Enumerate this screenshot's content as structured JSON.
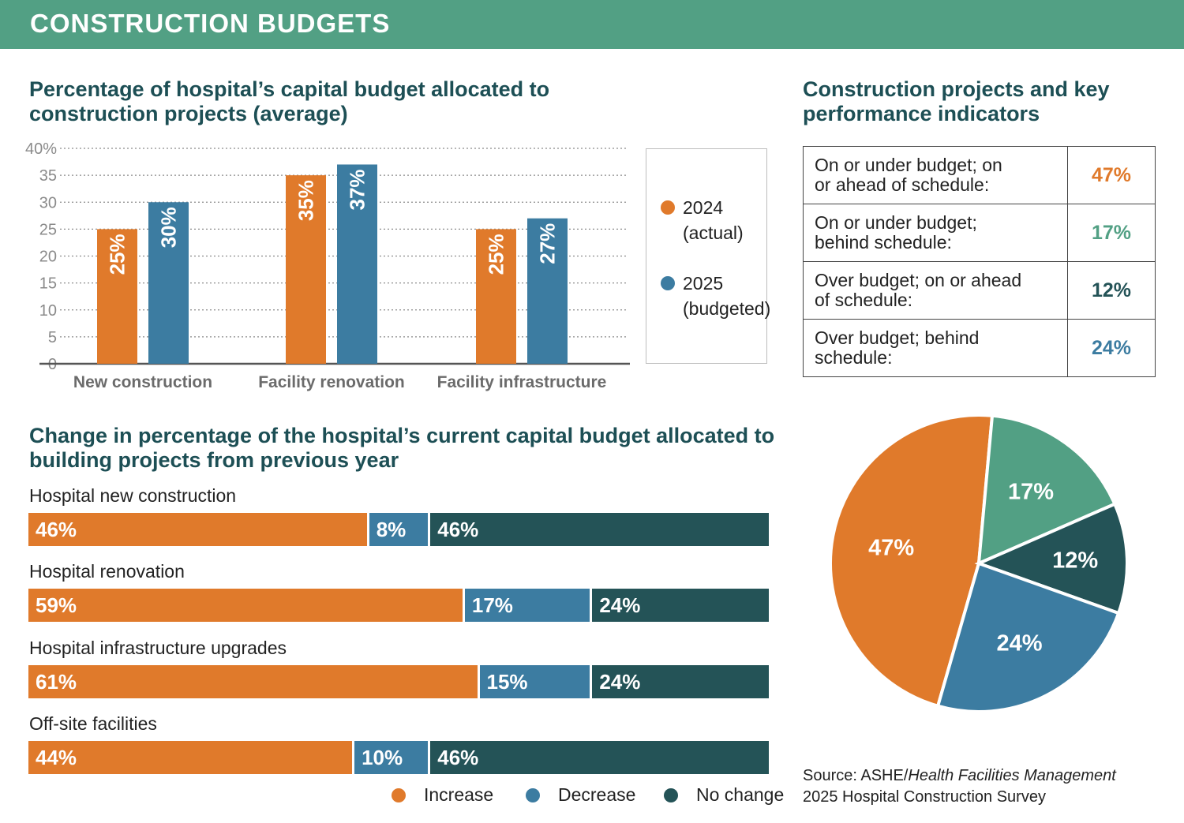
{
  "header": {
    "title": "CONSTRUCTION BUDGETS"
  },
  "colors": {
    "orange": "#e07a2b",
    "blue": "#3c7ca1",
    "teal": "#52a084",
    "dark_teal": "#245357"
  },
  "chart_data": [
    {
      "type": "bar",
      "title": "Percentage of hospital’s capital budget allocated to construction projects (average)",
      "categories": [
        "New construction",
        "Facility renovation",
        "Facility infrastructure"
      ],
      "series": [
        {
          "name": "2024 (actual)",
          "values": [
            25,
            35,
            25
          ],
          "labels": [
            "25%",
            "35%",
            "25%"
          ],
          "color": "#e07a2b"
        },
        {
          "name": "2025 (budgeted)",
          "values": [
            30,
            37,
            27
          ],
          "labels": [
            "30%",
            "37%",
            "27%"
          ],
          "color": "#3c7ca1"
        }
      ],
      "ylim": [
        0,
        40
      ],
      "yticks": [
        0,
        5,
        10,
        15,
        20,
        25,
        30,
        35,
        40
      ],
      "ytick_labels": [
        "0",
        "5",
        "10",
        "15",
        "20",
        "25",
        "30",
        "35",
        "40%"
      ],
      "grid": true,
      "legend": {
        "position": "right",
        "items": [
          {
            "line1": "2024",
            "line2": "(actual)",
            "color": "#e07a2b"
          },
          {
            "line1": "2025",
            "line2": "(budgeted)",
            "color": "#3c7ca1"
          }
        ]
      }
    },
    {
      "type": "table",
      "title": "Construction projects and key performance indicators",
      "rows": [
        {
          "line1": "On or under budget; on",
          "line2": "or ahead of schedule:",
          "value": "47%",
          "color": "#e07a2b"
        },
        {
          "line1": "On or under budget;",
          "line2": "behind schedule:",
          "value": "17%",
          "color": "#52a084"
        },
        {
          "line1": "Over budget; on or ahead",
          "line2": "of schedule:",
          "value": "12%",
          "color": "#245357"
        },
        {
          "line1": "Over budget; behind",
          "line2": "schedule:",
          "value": "24%",
          "color": "#3c7ca1"
        }
      ]
    },
    {
      "type": "pie",
      "slices": [
        {
          "value": 47,
          "label": "47%",
          "color": "#e07a2b"
        },
        {
          "value": 17,
          "label": "17%",
          "color": "#52a084"
        },
        {
          "value": 12,
          "label": "12%",
          "color": "#245357"
        },
        {
          "value": 24,
          "label": "24%",
          "color": "#3c7ca1"
        }
      ],
      "start_angle_deg": 196,
      "direction": "clockwise"
    },
    {
      "type": "bar",
      "orientation": "horizontal-stacked-100",
      "title": "Change in percentage of the hospital’s current capital budget allocated to building projects from previous year",
      "categories": [
        "Hospital new construction",
        "Hospital renovation",
        "Hospital infrastructure upgrades",
        "Off-site facilities"
      ],
      "series": [
        {
          "name": "Increase",
          "values": [
            46,
            59,
            61,
            44
          ],
          "labels": [
            "46%",
            "59%",
            "61%",
            "44%"
          ],
          "color": "#e07a2b"
        },
        {
          "name": "Decrease",
          "values": [
            8,
            17,
            15,
            10
          ],
          "labels": [
            "8%",
            "17%",
            "15%",
            "10%"
          ],
          "color": "#3c7ca1"
        },
        {
          "name": "No change",
          "values": [
            46,
            24,
            24,
            46
          ],
          "labels": [
            "46%",
            "24%",
            "24%",
            "46%"
          ],
          "color": "#245357"
        }
      ],
      "legend": {
        "position": "bottom-right"
      }
    }
  ],
  "source": {
    "prefix": "Source: ASHE/",
    "italic": "Health Facilities Management",
    "line2": "2025 Hospital Construction Survey"
  }
}
